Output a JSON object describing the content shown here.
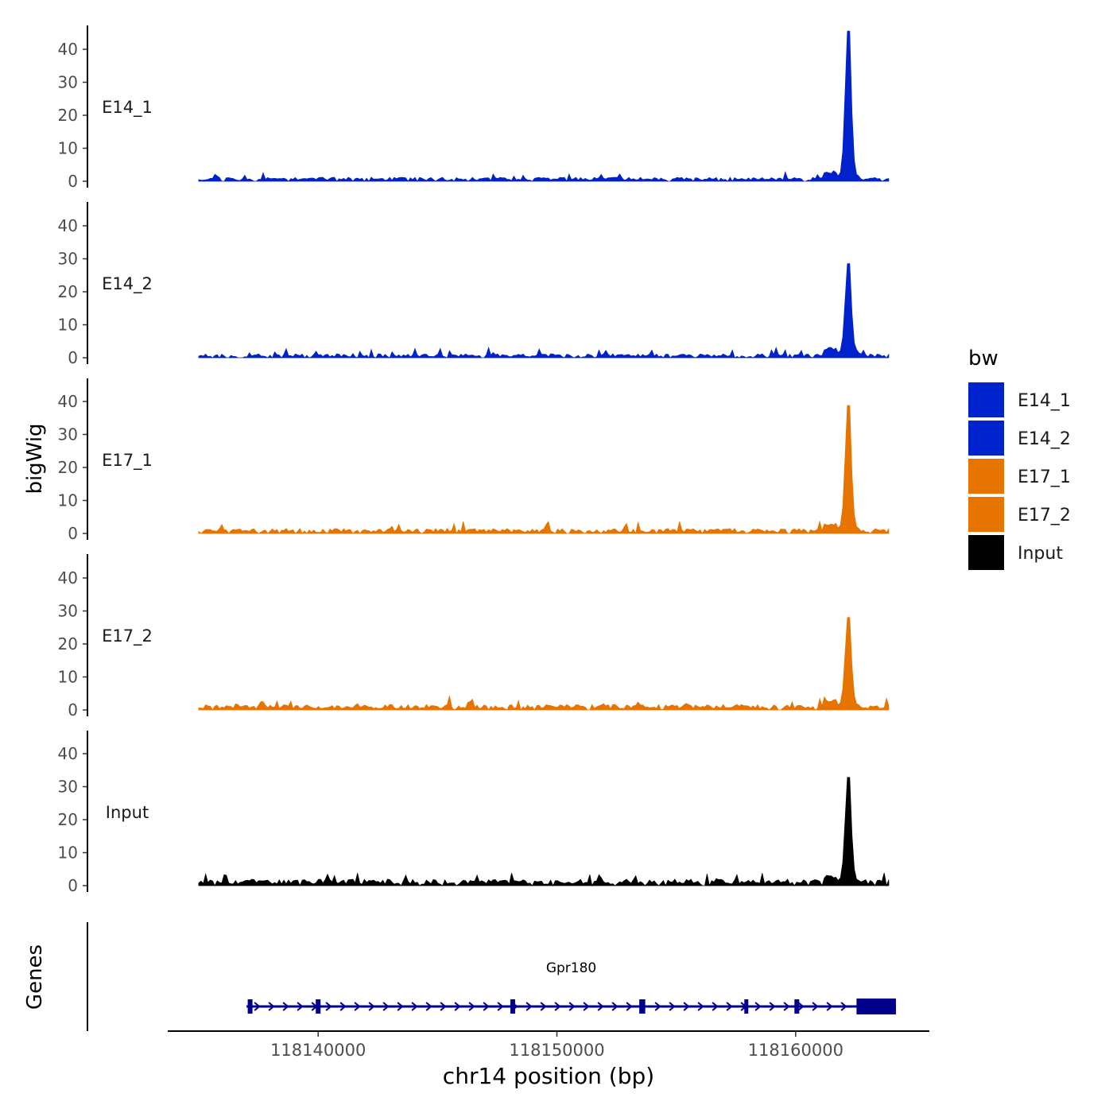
{
  "chart_data": {
    "type": "area",
    "xlabel": "chr14 position (bp)",
    "ylabel": "bigWig",
    "genes_label": "Genes",
    "x_range": [
      118133700,
      118165600
    ],
    "x_ticks": [
      {
        "value": 118140000,
        "label": "118140000"
      },
      {
        "value": 118150000,
        "label": "118150000"
      },
      {
        "value": 118160000,
        "label": "118160000"
      }
    ],
    "y_range": [
      0,
      48
    ],
    "y_ticks": [
      {
        "value": 0,
        "label": "0"
      },
      {
        "value": 10,
        "label": "10"
      },
      {
        "value": 20,
        "label": "20"
      },
      {
        "value": 30,
        "label": "30"
      },
      {
        "value": 40,
        "label": "40"
      }
    ],
    "legend": {
      "title": "bw",
      "placement": "right",
      "entries": [
        {
          "label": "E14_1",
          "color": "#0022CC"
        },
        {
          "label": "E14_2",
          "color": "#0022CC"
        },
        {
          "label": "E17_1",
          "color": "#E87400"
        },
        {
          "label": "E17_2",
          "color": "#E87400"
        },
        {
          "label": "Input",
          "color": "#000000"
        }
      ]
    },
    "signal_x": {
      "start": 118135000,
      "end": 118163900,
      "peak_position": 118162200
    },
    "series": [
      {
        "name": "E14_1",
        "color": "#0022CC",
        "peak": 45.5,
        "baseline": 0.8,
        "seed": 11
      },
      {
        "name": "E14_2",
        "color": "#0022CC",
        "peak": 28.5,
        "baseline": 0.8,
        "seed": 23
      },
      {
        "name": "E17_1",
        "color": "#E87400",
        "peak": 38.8,
        "baseline": 1.0,
        "seed": 37
      },
      {
        "name": "E17_2",
        "color": "#E87400",
        "peak": 28.0,
        "baseline": 1.1,
        "seed": 41
      },
      {
        "name": "Input",
        "color": "#000000",
        "peak": 32.8,
        "baseline": 1.3,
        "seed": 53
      }
    ],
    "gene": {
      "name": "Gpr180",
      "color": "#00008B",
      "start": 118137000,
      "end": 118164200,
      "strand": "+",
      "exons": [
        [
          118137050,
          118137250
        ],
        [
          118139900,
          118140100
        ],
        [
          118148050,
          118148250
        ],
        [
          118153450,
          118153700
        ],
        [
          118157850,
          118158000
        ],
        [
          118159950,
          118160150
        ],
        [
          118162550,
          118164200
        ]
      ]
    }
  }
}
